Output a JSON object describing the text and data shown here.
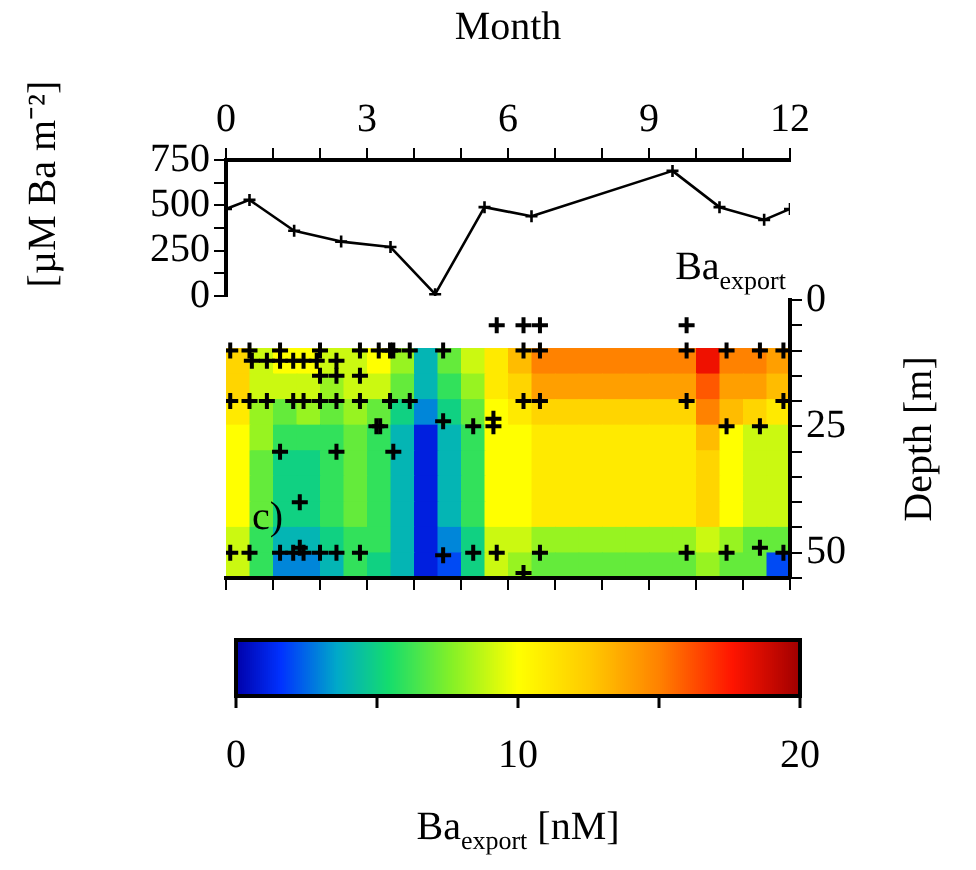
{
  "chart_data": [
    {
      "type": "line",
      "xlabel": "Month",
      "ylabel": "[µM Ba m⁻²]",
      "xlim": [
        0,
        12
      ],
      "xticks": [
        0,
        {
          "value": 1,
          "label": null
        },
        {
          "value": 2,
          "label": null
        },
        3,
        {
          "value": 4,
          "label": null
        },
        {
          "value": 5,
          "label": null
        },
        6,
        {
          "value": 7,
          "label": null
        },
        {
          "value": 8,
          "label": null
        },
        9,
        {
          "value": 10,
          "label": null
        },
        {
          "value": 11,
          "label": null
        },
        12
      ],
      "ylim": [
        0,
        750
      ],
      "yticks": [
        0,
        {
          "value": 125,
          "label": null
        },
        250,
        {
          "value": 375,
          "label": null
        },
        500,
        {
          "value": 625,
          "label": null
        },
        750
      ],
      "marker": "cross",
      "line_style": "solid",
      "grid": false,
      "legend": false,
      "annotations": [
        "Ba$_{export}$"
      ],
      "series": [
        {
          "color": "#000000",
          "x": [
            0,
            0.5,
            1.45,
            2.45,
            3.5,
            4.45,
            5.5,
            6.5,
            9.5,
            10.5,
            11.45,
            12
          ],
          "values": [
            480,
            530,
            360,
            300,
            270,
            10,
            490,
            440,
            690,
            490,
            420,
            480
          ]
        }
      ]
    },
    {
      "type": "heatmap",
      "clabel": "Ba$_{export}$ [nM]",
      "clim": [
        0,
        20
      ],
      "cticks": [
        0,
        {
          "value": 5,
          "label": null
        },
        10,
        {
          "value": 15,
          "label": null
        },
        20
      ],
      "tick_labels": false,
      "legend": false,
      "annotations": [
        "c)"
      ],
      "categories": [
        null,
        null,
        null,
        null,
        null,
        null,
        null,
        null,
        null,
        null,
        null,
        null,
        null,
        null,
        null,
        null,
        null,
        null,
        null,
        null,
        null,
        null,
        null,
        null
      ],
      "y_categories": [
        null,
        null,
        null,
        null,
        null,
        null,
        null,
        null,
        null
      ],
      "cells": [
        [
          12,
          9,
          10,
          10,
          9,
          9,
          10,
          8,
          4,
          7,
          9,
          11,
          13,
          15,
          15,
          15,
          15,
          15,
          15,
          15,
          18,
          15,
          15,
          14
        ],
        [
          12,
          9,
          9,
          9,
          8,
          9,
          9,
          7,
          4,
          6,
          8,
          11,
          12,
          14,
          14,
          14,
          14,
          14,
          14,
          14,
          16,
          14,
          14,
          13
        ],
        [
          11,
          8,
          7,
          8,
          7,
          8,
          7,
          5,
          3,
          5,
          7,
          10,
          11,
          12,
          12,
          12,
          12,
          12,
          12,
          12,
          15,
          13,
          12,
          11
        ],
        [
          10,
          8,
          6,
          6,
          6,
          7,
          6,
          4,
          1,
          4,
          6,
          10,
          10,
          11,
          11,
          11,
          11,
          11,
          11,
          11,
          13,
          10,
          9,
          9
        ],
        [
          10,
          7,
          5,
          5,
          6,
          7,
          6,
          4,
          1,
          4,
          6,
          10,
          10,
          11,
          11,
          11,
          11,
          11,
          11,
          11,
          12,
          10,
          9,
          9
        ],
        [
          10,
          7,
          5,
          5,
          6,
          7,
          6,
          4,
          1,
          4,
          6,
          10,
          10,
          11,
          11,
          11,
          11,
          11,
          11,
          11,
          12,
          10,
          9,
          9
        ],
        [
          10,
          7,
          5,
          5,
          6,
          7,
          6,
          4,
          1,
          4,
          6,
          10,
          10,
          11,
          11,
          11,
          11,
          11,
          11,
          11,
          12,
          10,
          9,
          9
        ],
        [
          9,
          6,
          4,
          4,
          5,
          6,
          6,
          4,
          1,
          3,
          5,
          9,
          9,
          8,
          8,
          8,
          8,
          8,
          8,
          8,
          9,
          8,
          7,
          7
        ],
        [
          9,
          6,
          3,
          3,
          4,
          6,
          5,
          4,
          1,
          2,
          5,
          9,
          8,
          7,
          7,
          7,
          7,
          7,
          7,
          7,
          8,
          7,
          7,
          2
        ]
      ]
    },
    {
      "type": "scatter",
      "ylabel": "Depth [m]",
      "xlim": [
        0,
        12
      ],
      "xticks": [
        {
          "value": 0,
          "label": null
        },
        {
          "value": 1,
          "label": null
        },
        {
          "value": 2,
          "label": null
        },
        {
          "value": 3,
          "label": null
        },
        {
          "value": 4,
          "label": null
        },
        {
          "value": 5,
          "label": null
        },
        {
          "value": 6,
          "label": null
        },
        {
          "value": 7,
          "label": null
        },
        {
          "value": 8,
          "label": null
        },
        {
          "value": 9,
          "label": null
        },
        {
          "value": 10,
          "label": null
        },
        {
          "value": 11,
          "label": null
        },
        {
          "value": 12,
          "label": null
        }
      ],
      "ylim": [
        55,
        0
      ],
      "yticks": [
        0,
        {
          "value": 5,
          "label": null
        },
        {
          "value": 10,
          "label": null
        },
        {
          "value": 15,
          "label": null
        },
        {
          "value": 20,
          "label": null
        },
        25,
        {
          "value": 30,
          "label": null
        },
        {
          "value": 35,
          "label": null
        },
        {
          "value": 40,
          "label": null
        },
        {
          "value": 45,
          "label": null
        },
        50,
        {
          "value": 55,
          "label": null
        }
      ],
      "tick_labels": "y",
      "marker": "cross",
      "grid": false,
      "legend": false,
      "series": [
        {
          "color": "#000000",
          "x": [
            5.76,
            6.33,
            6.68,
            9.8,
            0.09,
            0.5,
            1.15,
            2.0,
            2.85,
            3.25,
            3.49,
            3.56,
            3.91,
            4.62,
            6.33,
            6.68,
            9.8,
            10.65,
            11.36,
            11.86,
            0.55,
            0.87,
            1.15,
            1.43,
            1.65,
            1.93,
            2.35,
            2.0,
            2.35,
            2.85,
            0.09,
            0.5,
            0.87,
            1.43,
            1.65,
            2.0,
            2.35,
            2.85,
            3.49,
            3.91,
            6.33,
            6.68,
            9.8,
            11.86,
            3.2,
            3.28,
            4.62,
            5.26,
            5.69,
            5.69,
            10.65,
            11.36,
            1.15,
            2.35,
            3.56,
            1.57,
            0.09,
            0.5,
            1.15,
            1.43,
            1.65,
            2.0,
            2.35,
            2.85,
            4.62,
            5.26,
            5.76,
            6.68,
            9.8,
            10.65,
            11.36,
            11.86,
            1.57,
            6.33
          ],
          "values": [
            5,
            5,
            5,
            5,
            10,
            10,
            10,
            10,
            10,
            10,
            10,
            10,
            10,
            10,
            10,
            10,
            10,
            10,
            10,
            10,
            12,
            12,
            12,
            12,
            12,
            12,
            12,
            15,
            15,
            15,
            20,
            20,
            20,
            20,
            20,
            20,
            20,
            20,
            20,
            20,
            20,
            20,
            20,
            20,
            25,
            25,
            24,
            25,
            23.5,
            25,
            25,
            25,
            30,
            30,
            30,
            40,
            50,
            50,
            50,
            50,
            50,
            50,
            50,
            50,
            50.5,
            50,
            50,
            50,
            50,
            50,
            49,
            50,
            49,
            54
          ]
        }
      ]
    }
  ]
}
